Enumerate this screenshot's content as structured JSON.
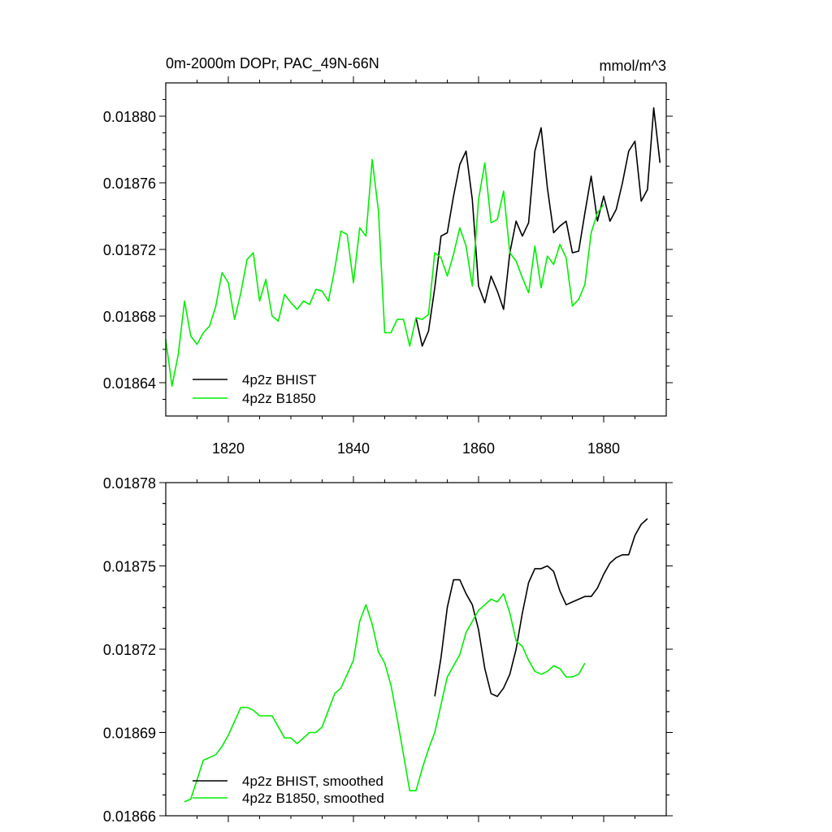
{
  "colors": {
    "bhist": "#000000",
    "b1850": "#00ee00",
    "axis": "#000000",
    "background": "#ffffff"
  },
  "chart_data": [
    {
      "type": "line",
      "title": "0m-2000m DOPr, PAC_49N-66N",
      "units": "mmol/m^3",
      "xlim": [
        1810,
        1890
      ],
      "ylim": [
        0.01862,
        0.01882
      ],
      "yticks": [
        0.01864,
        0.01868,
        0.01872,
        0.01876,
        0.0188
      ],
      "ytick_labels": [
        "0.01864",
        "0.01868",
        "0.01872",
        "0.01876",
        "0.01880"
      ],
      "xticks": [
        1820,
        1840,
        1860,
        1880
      ],
      "xtick_labels": [
        "1820",
        "1840",
        "1860",
        "1880"
      ],
      "legend_position": "bottom-left",
      "series": [
        {
          "name": "4p2z BHIST",
          "color_key": "bhist",
          "x": [
            1850,
            1851,
            1852,
            1853,
            1854,
            1855,
            1856,
            1857,
            1858,
            1859,
            1860,
            1861,
            1862,
            1863,
            1864,
            1865,
            1866,
            1867,
            1868,
            1869,
            1870,
            1871,
            1872,
            1873,
            1874,
            1875,
            1876,
            1877,
            1878,
            1879,
            1880,
            1881,
            1882,
            1883,
            1884,
            1885,
            1886,
            1887,
            1888,
            1889
          ],
          "values": [
            0.018679,
            0.018662,
            0.018671,
            0.018697,
            0.018728,
            0.01873,
            0.018752,
            0.018771,
            0.018779,
            0.01875,
            0.018698,
            0.018688,
            0.018704,
            0.018695,
            0.018684,
            0.018718,
            0.018737,
            0.018728,
            0.018736,
            0.018779,
            0.018793,
            0.018757,
            0.01873,
            0.018734,
            0.018737,
            0.018718,
            0.018719,
            0.018742,
            0.018764,
            0.018737,
            0.018752,
            0.018737,
            0.018744,
            0.01876,
            0.018779,
            0.018785,
            0.018749,
            0.018756,
            0.018805,
            0.018772
          ]
        },
        {
          "name": "4p2z B1850",
          "color_key": "b1850",
          "x": [
            1810,
            1811,
            1812,
            1813,
            1814,
            1815,
            1816,
            1817,
            1818,
            1819,
            1820,
            1821,
            1822,
            1823,
            1824,
            1825,
            1826,
            1827,
            1828,
            1829,
            1830,
            1831,
            1832,
            1833,
            1834,
            1835,
            1836,
            1837,
            1838,
            1839,
            1840,
            1841,
            1842,
            1843,
            1844,
            1845,
            1846,
            1847,
            1848,
            1849,
            1850,
            1851,
            1852,
            1853,
            1854,
            1855,
            1856,
            1857,
            1858,
            1859,
            1860,
            1861,
            1862,
            1863,
            1864,
            1865,
            1866,
            1867,
            1868,
            1869,
            1870,
            1871,
            1872,
            1873,
            1874,
            1875,
            1876,
            1877,
            1878,
            1879,
            1880
          ],
          "values": [
            0.018666,
            0.018638,
            0.018657,
            0.018689,
            0.018668,
            0.018663,
            0.01867,
            0.018674,
            0.018686,
            0.018706,
            0.0187,
            0.018678,
            0.018694,
            0.018714,
            0.018718,
            0.018689,
            0.018702,
            0.01868,
            0.018677,
            0.018693,
            0.018688,
            0.018684,
            0.018689,
            0.018687,
            0.018696,
            0.018695,
            0.018689,
            0.018708,
            0.018731,
            0.018729,
            0.0187,
            0.018733,
            0.018728,
            0.018774,
            0.018743,
            0.01867,
            0.01867,
            0.018678,
            0.018678,
            0.018662,
            0.018679,
            0.018678,
            0.018681,
            0.018718,
            0.018715,
            0.018704,
            0.018717,
            0.018733,
            0.018722,
            0.018698,
            0.01875,
            0.018772,
            0.018736,
            0.018738,
            0.018755,
            0.018718,
            0.018713,
            0.018703,
            0.018694,
            0.018722,
            0.018697,
            0.018716,
            0.018711,
            0.018723,
            0.018715,
            0.018686,
            0.01869,
            0.018699,
            0.01873,
            0.018742,
            0.018747
          ]
        }
      ]
    },
    {
      "type": "line",
      "title": "",
      "xlim": [
        1810,
        1890
      ],
      "ylim": [
        0.01866,
        0.01878
      ],
      "yticks": [
        0.01866,
        0.01869,
        0.01872,
        0.01875,
        0.01878
      ],
      "ytick_labels": [
        "0.01866",
        "0.01869",
        "0.01872",
        "0.01875",
        "0.01878"
      ],
      "xticks": [
        1820,
        1840,
        1860,
        1880
      ],
      "legend_position": "bottom-left",
      "series": [
        {
          "name": "4p2z BHIST, smoothed",
          "color_key": "bhist",
          "x": [
            1853,
            1854,
            1855,
            1856,
            1857,
            1858,
            1859,
            1860,
            1861,
            1862,
            1863,
            1864,
            1865,
            1866,
            1867,
            1868,
            1869,
            1870,
            1871,
            1872,
            1873,
            1874,
            1875,
            1876,
            1877,
            1878,
            1879,
            1880,
            1881,
            1882,
            1883,
            1884,
            1885,
            1886,
            1887
          ],
          "values": [
            0.018703,
            0.018717,
            0.018735,
            0.018745,
            0.018745,
            0.01874,
            0.018736,
            0.018727,
            0.018713,
            0.018704,
            0.018703,
            0.018706,
            0.018711,
            0.01872,
            0.018733,
            0.018744,
            0.018749,
            0.018749,
            0.01875,
            0.018748,
            0.018741,
            0.018736,
            0.018737,
            0.018738,
            0.018739,
            0.018739,
            0.018742,
            0.018747,
            0.018751,
            0.018753,
            0.018754,
            0.018754,
            0.018761,
            0.018765,
            0.018767
          ]
        },
        {
          "name": "4p2z B1850, smoothed",
          "color_key": "b1850",
          "x": [
            1813,
            1814,
            1815,
            1816,
            1817,
            1818,
            1819,
            1820,
            1821,
            1822,
            1823,
            1824,
            1825,
            1826,
            1827,
            1828,
            1829,
            1830,
            1831,
            1832,
            1833,
            1834,
            1835,
            1836,
            1837,
            1838,
            1839,
            1840,
            1841,
            1842,
            1843,
            1844,
            1845,
            1846,
            1847,
            1848,
            1849,
            1850,
            1851,
            1852,
            1853,
            1854,
            1855,
            1856,
            1857,
            1858,
            1859,
            1860,
            1861,
            1862,
            1863,
            1864,
            1865,
            1866,
            1867,
            1868,
            1869,
            1870,
            1871,
            1872,
            1873,
            1874,
            1875,
            1876,
            1877
          ],
          "values": [
            0.018665,
            0.018666,
            0.018673,
            0.01868,
            0.018681,
            0.018682,
            0.018685,
            0.018689,
            0.018694,
            0.018699,
            0.018699,
            0.018698,
            0.018696,
            0.018696,
            0.018696,
            0.018692,
            0.018688,
            0.018688,
            0.018686,
            0.018688,
            0.01869,
            0.01869,
            0.018692,
            0.018698,
            0.018704,
            0.018706,
            0.018711,
            0.018716,
            0.01873,
            0.018736,
            0.018729,
            0.018719,
            0.018715,
            0.018707,
            0.018695,
            0.018682,
            0.018669,
            0.018669,
            0.018677,
            0.018684,
            0.01869,
            0.0187,
            0.01871,
            0.018714,
            0.018718,
            0.018726,
            0.01873,
            0.018734,
            0.018736,
            0.018738,
            0.018737,
            0.01874,
            0.018733,
            0.018723,
            0.018721,
            0.018716,
            0.018712,
            0.018711,
            0.018712,
            0.018714,
            0.018713,
            0.01871,
            0.01871,
            0.018711,
            0.018715
          ]
        }
      ]
    }
  ]
}
